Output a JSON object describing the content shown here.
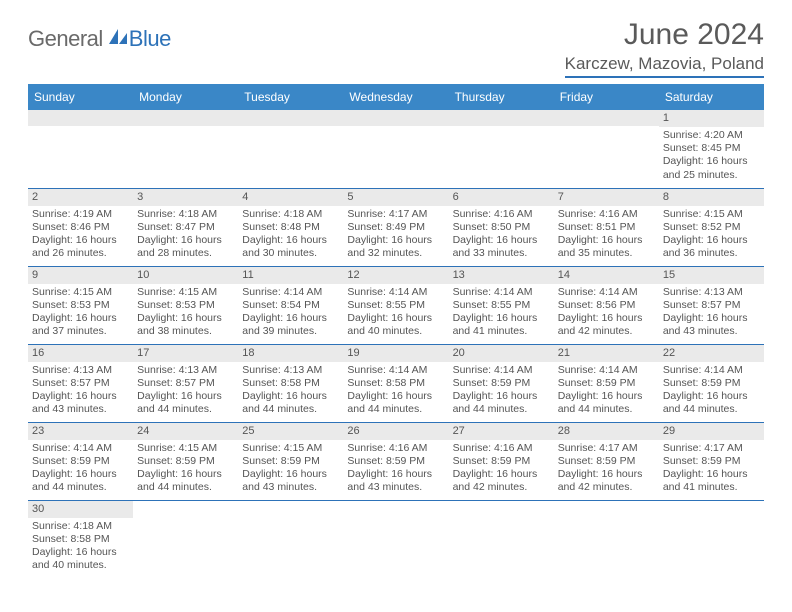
{
  "logo": {
    "text1": "General",
    "text2": "Blue"
  },
  "title": "June 2024",
  "location": "Karczew, Mazovia, Poland",
  "day_headers": [
    "Sunday",
    "Monday",
    "Tuesday",
    "Wednesday",
    "Thursday",
    "Friday",
    "Saturday"
  ],
  "colors": {
    "header_bg": "#3a87c7",
    "accent": "#2d72b8",
    "gray_bar": "#eaeaea",
    "text": "#555555"
  },
  "weeks": [
    [
      null,
      null,
      null,
      null,
      null,
      null,
      {
        "n": "1",
        "sr": "Sunrise: 4:20 AM",
        "ss": "Sunset: 8:45 PM",
        "d1": "Daylight: 16 hours",
        "d2": "and 25 minutes."
      }
    ],
    [
      {
        "n": "2",
        "sr": "Sunrise: 4:19 AM",
        "ss": "Sunset: 8:46 PM",
        "d1": "Daylight: 16 hours",
        "d2": "and 26 minutes."
      },
      {
        "n": "3",
        "sr": "Sunrise: 4:18 AM",
        "ss": "Sunset: 8:47 PM",
        "d1": "Daylight: 16 hours",
        "d2": "and 28 minutes."
      },
      {
        "n": "4",
        "sr": "Sunrise: 4:18 AM",
        "ss": "Sunset: 8:48 PM",
        "d1": "Daylight: 16 hours",
        "d2": "and 30 minutes."
      },
      {
        "n": "5",
        "sr": "Sunrise: 4:17 AM",
        "ss": "Sunset: 8:49 PM",
        "d1": "Daylight: 16 hours",
        "d2": "and 32 minutes."
      },
      {
        "n": "6",
        "sr": "Sunrise: 4:16 AM",
        "ss": "Sunset: 8:50 PM",
        "d1": "Daylight: 16 hours",
        "d2": "and 33 minutes."
      },
      {
        "n": "7",
        "sr": "Sunrise: 4:16 AM",
        "ss": "Sunset: 8:51 PM",
        "d1": "Daylight: 16 hours",
        "d2": "and 35 minutes."
      },
      {
        "n": "8",
        "sr": "Sunrise: 4:15 AM",
        "ss": "Sunset: 8:52 PM",
        "d1": "Daylight: 16 hours",
        "d2": "and 36 minutes."
      }
    ],
    [
      {
        "n": "9",
        "sr": "Sunrise: 4:15 AM",
        "ss": "Sunset: 8:53 PM",
        "d1": "Daylight: 16 hours",
        "d2": "and 37 minutes."
      },
      {
        "n": "10",
        "sr": "Sunrise: 4:15 AM",
        "ss": "Sunset: 8:53 PM",
        "d1": "Daylight: 16 hours",
        "d2": "and 38 minutes."
      },
      {
        "n": "11",
        "sr": "Sunrise: 4:14 AM",
        "ss": "Sunset: 8:54 PM",
        "d1": "Daylight: 16 hours",
        "d2": "and 39 minutes."
      },
      {
        "n": "12",
        "sr": "Sunrise: 4:14 AM",
        "ss": "Sunset: 8:55 PM",
        "d1": "Daylight: 16 hours",
        "d2": "and 40 minutes."
      },
      {
        "n": "13",
        "sr": "Sunrise: 4:14 AM",
        "ss": "Sunset: 8:55 PM",
        "d1": "Daylight: 16 hours",
        "d2": "and 41 minutes."
      },
      {
        "n": "14",
        "sr": "Sunrise: 4:14 AM",
        "ss": "Sunset: 8:56 PM",
        "d1": "Daylight: 16 hours",
        "d2": "and 42 minutes."
      },
      {
        "n": "15",
        "sr": "Sunrise: 4:13 AM",
        "ss": "Sunset: 8:57 PM",
        "d1": "Daylight: 16 hours",
        "d2": "and 43 minutes."
      }
    ],
    [
      {
        "n": "16",
        "sr": "Sunrise: 4:13 AM",
        "ss": "Sunset: 8:57 PM",
        "d1": "Daylight: 16 hours",
        "d2": "and 43 minutes."
      },
      {
        "n": "17",
        "sr": "Sunrise: 4:13 AM",
        "ss": "Sunset: 8:57 PM",
        "d1": "Daylight: 16 hours",
        "d2": "and 44 minutes."
      },
      {
        "n": "18",
        "sr": "Sunrise: 4:13 AM",
        "ss": "Sunset: 8:58 PM",
        "d1": "Daylight: 16 hours",
        "d2": "and 44 minutes."
      },
      {
        "n": "19",
        "sr": "Sunrise: 4:14 AM",
        "ss": "Sunset: 8:58 PM",
        "d1": "Daylight: 16 hours",
        "d2": "and 44 minutes."
      },
      {
        "n": "20",
        "sr": "Sunrise: 4:14 AM",
        "ss": "Sunset: 8:59 PM",
        "d1": "Daylight: 16 hours",
        "d2": "and 44 minutes."
      },
      {
        "n": "21",
        "sr": "Sunrise: 4:14 AM",
        "ss": "Sunset: 8:59 PM",
        "d1": "Daylight: 16 hours",
        "d2": "and 44 minutes."
      },
      {
        "n": "22",
        "sr": "Sunrise: 4:14 AM",
        "ss": "Sunset: 8:59 PM",
        "d1": "Daylight: 16 hours",
        "d2": "and 44 minutes."
      }
    ],
    [
      {
        "n": "23",
        "sr": "Sunrise: 4:14 AM",
        "ss": "Sunset: 8:59 PM",
        "d1": "Daylight: 16 hours",
        "d2": "and 44 minutes."
      },
      {
        "n": "24",
        "sr": "Sunrise: 4:15 AM",
        "ss": "Sunset: 8:59 PM",
        "d1": "Daylight: 16 hours",
        "d2": "and 44 minutes."
      },
      {
        "n": "25",
        "sr": "Sunrise: 4:15 AM",
        "ss": "Sunset: 8:59 PM",
        "d1": "Daylight: 16 hours",
        "d2": "and 43 minutes."
      },
      {
        "n": "26",
        "sr": "Sunrise: 4:16 AM",
        "ss": "Sunset: 8:59 PM",
        "d1": "Daylight: 16 hours",
        "d2": "and 43 minutes."
      },
      {
        "n": "27",
        "sr": "Sunrise: 4:16 AM",
        "ss": "Sunset: 8:59 PM",
        "d1": "Daylight: 16 hours",
        "d2": "and 42 minutes."
      },
      {
        "n": "28",
        "sr": "Sunrise: 4:17 AM",
        "ss": "Sunset: 8:59 PM",
        "d1": "Daylight: 16 hours",
        "d2": "and 42 minutes."
      },
      {
        "n": "29",
        "sr": "Sunrise: 4:17 AM",
        "ss": "Sunset: 8:59 PM",
        "d1": "Daylight: 16 hours",
        "d2": "and 41 minutes."
      }
    ],
    [
      {
        "n": "30",
        "sr": "Sunrise: 4:18 AM",
        "ss": "Sunset: 8:58 PM",
        "d1": "Daylight: 16 hours",
        "d2": "and 40 minutes."
      },
      null,
      null,
      null,
      null,
      null,
      null
    ]
  ]
}
